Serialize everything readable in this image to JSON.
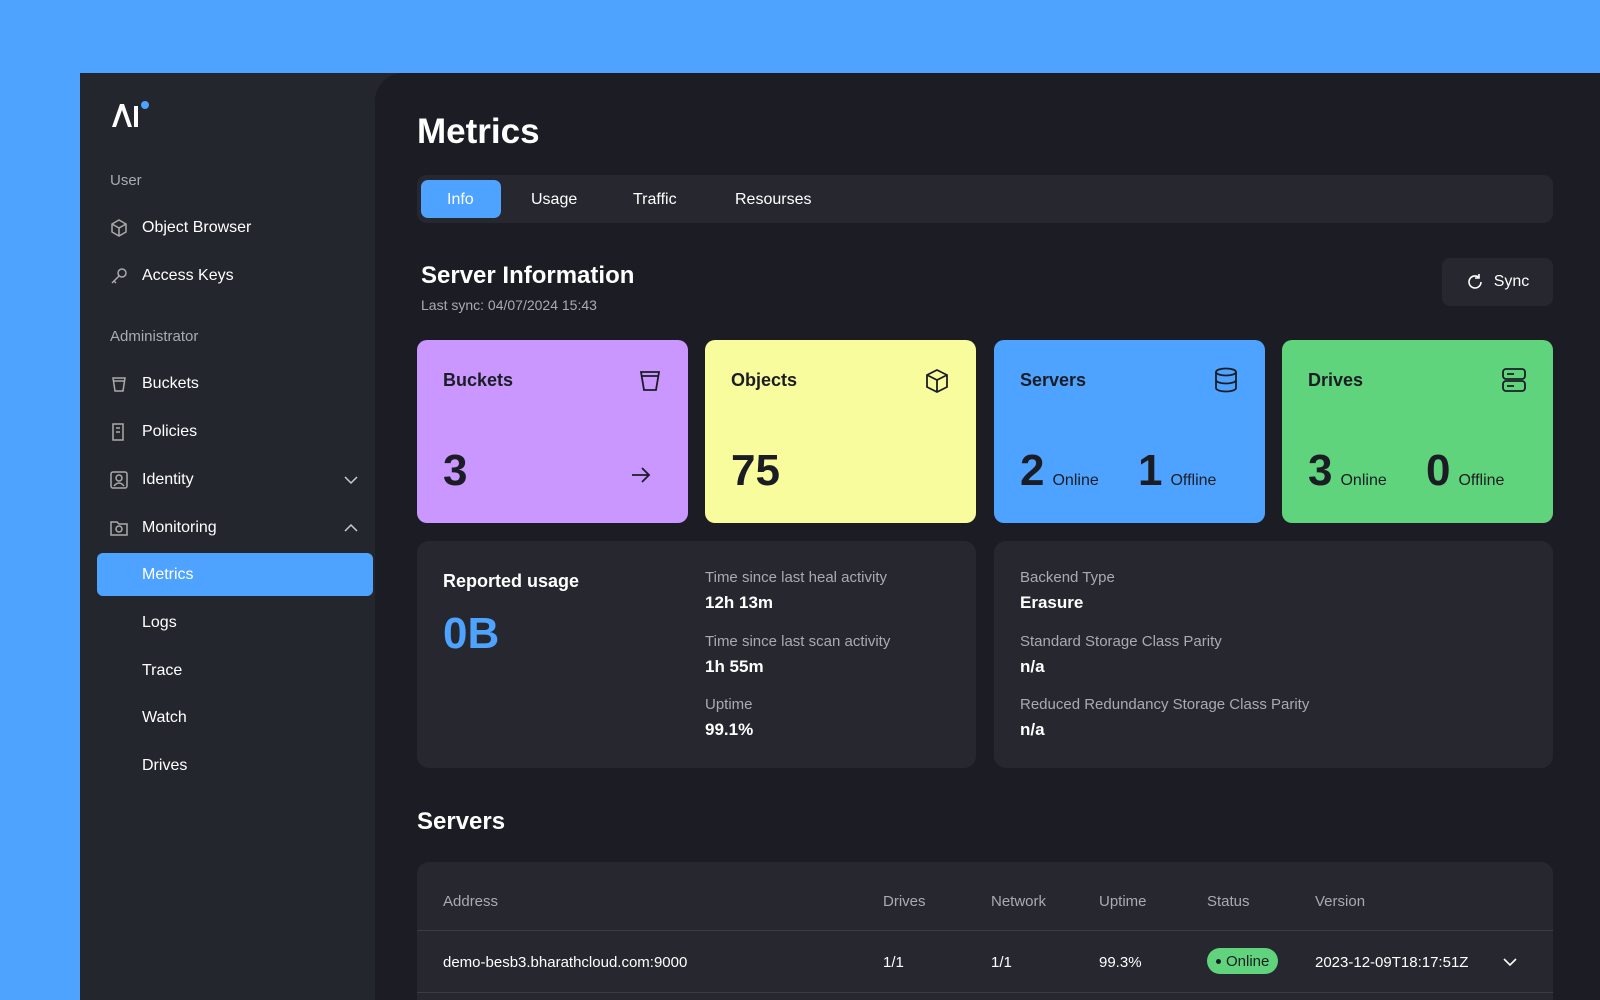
{
  "sidebar": {
    "sections": [
      {
        "label": "User",
        "items": [
          "Object Browser",
          "Access Keys"
        ]
      },
      {
        "label": "Administrator",
        "items": [
          "Buckets",
          "Policies",
          "Identity",
          "Monitoring"
        ]
      }
    ],
    "submenu": [
      "Metrics",
      "Logs",
      "Trace",
      "Watch",
      "Drives"
    ]
  },
  "header": {
    "title": "Metrics",
    "tabs": [
      "Info",
      "Usage",
      "Traffic",
      "Resourses"
    ]
  },
  "server_info": {
    "title": "Server Information",
    "last_sync": "Last sync: 04/07/2024 15:43",
    "sync_button": "Sync"
  },
  "cards": [
    {
      "label": "Buckets",
      "value": "3"
    },
    {
      "label": "Objects",
      "value": "75"
    },
    {
      "label": "Servers",
      "online": "2",
      "online_label": "Online",
      "offline": "1",
      "offline_label": "Offline"
    },
    {
      "label": "Drives",
      "online": "3",
      "online_label": "Online",
      "offline": "0",
      "offline_label": "Offline"
    }
  ],
  "usage": {
    "title": "Reported usage",
    "value": "0B",
    "stats": [
      {
        "label": "Time since last heal activity",
        "value": "12h 13m"
      },
      {
        "label": "Time since last scan activity",
        "value": "1h 55m"
      },
      {
        "label": "Uptime",
        "value": "99.1%"
      }
    ]
  },
  "backend": {
    "stats": [
      {
        "label": "Backend Type",
        "value": "Erasure"
      },
      {
        "label": "Standard Storage Class Parity",
        "value": "n/a"
      },
      {
        "label": "Reduced Redundancy Storage Class Parity",
        "value": "n/a"
      }
    ]
  },
  "servers": {
    "title": "Servers",
    "columns": [
      "Address",
      "Drives",
      "Network",
      "Uptime",
      "Status",
      "Version"
    ],
    "rows": [
      [
        "demo-besb3.bharathcloud.com:9000",
        "1/1",
        "1/1",
        "99.3%",
        "Online",
        "2023-12-09T18:17:51Z"
      ]
    ]
  }
}
